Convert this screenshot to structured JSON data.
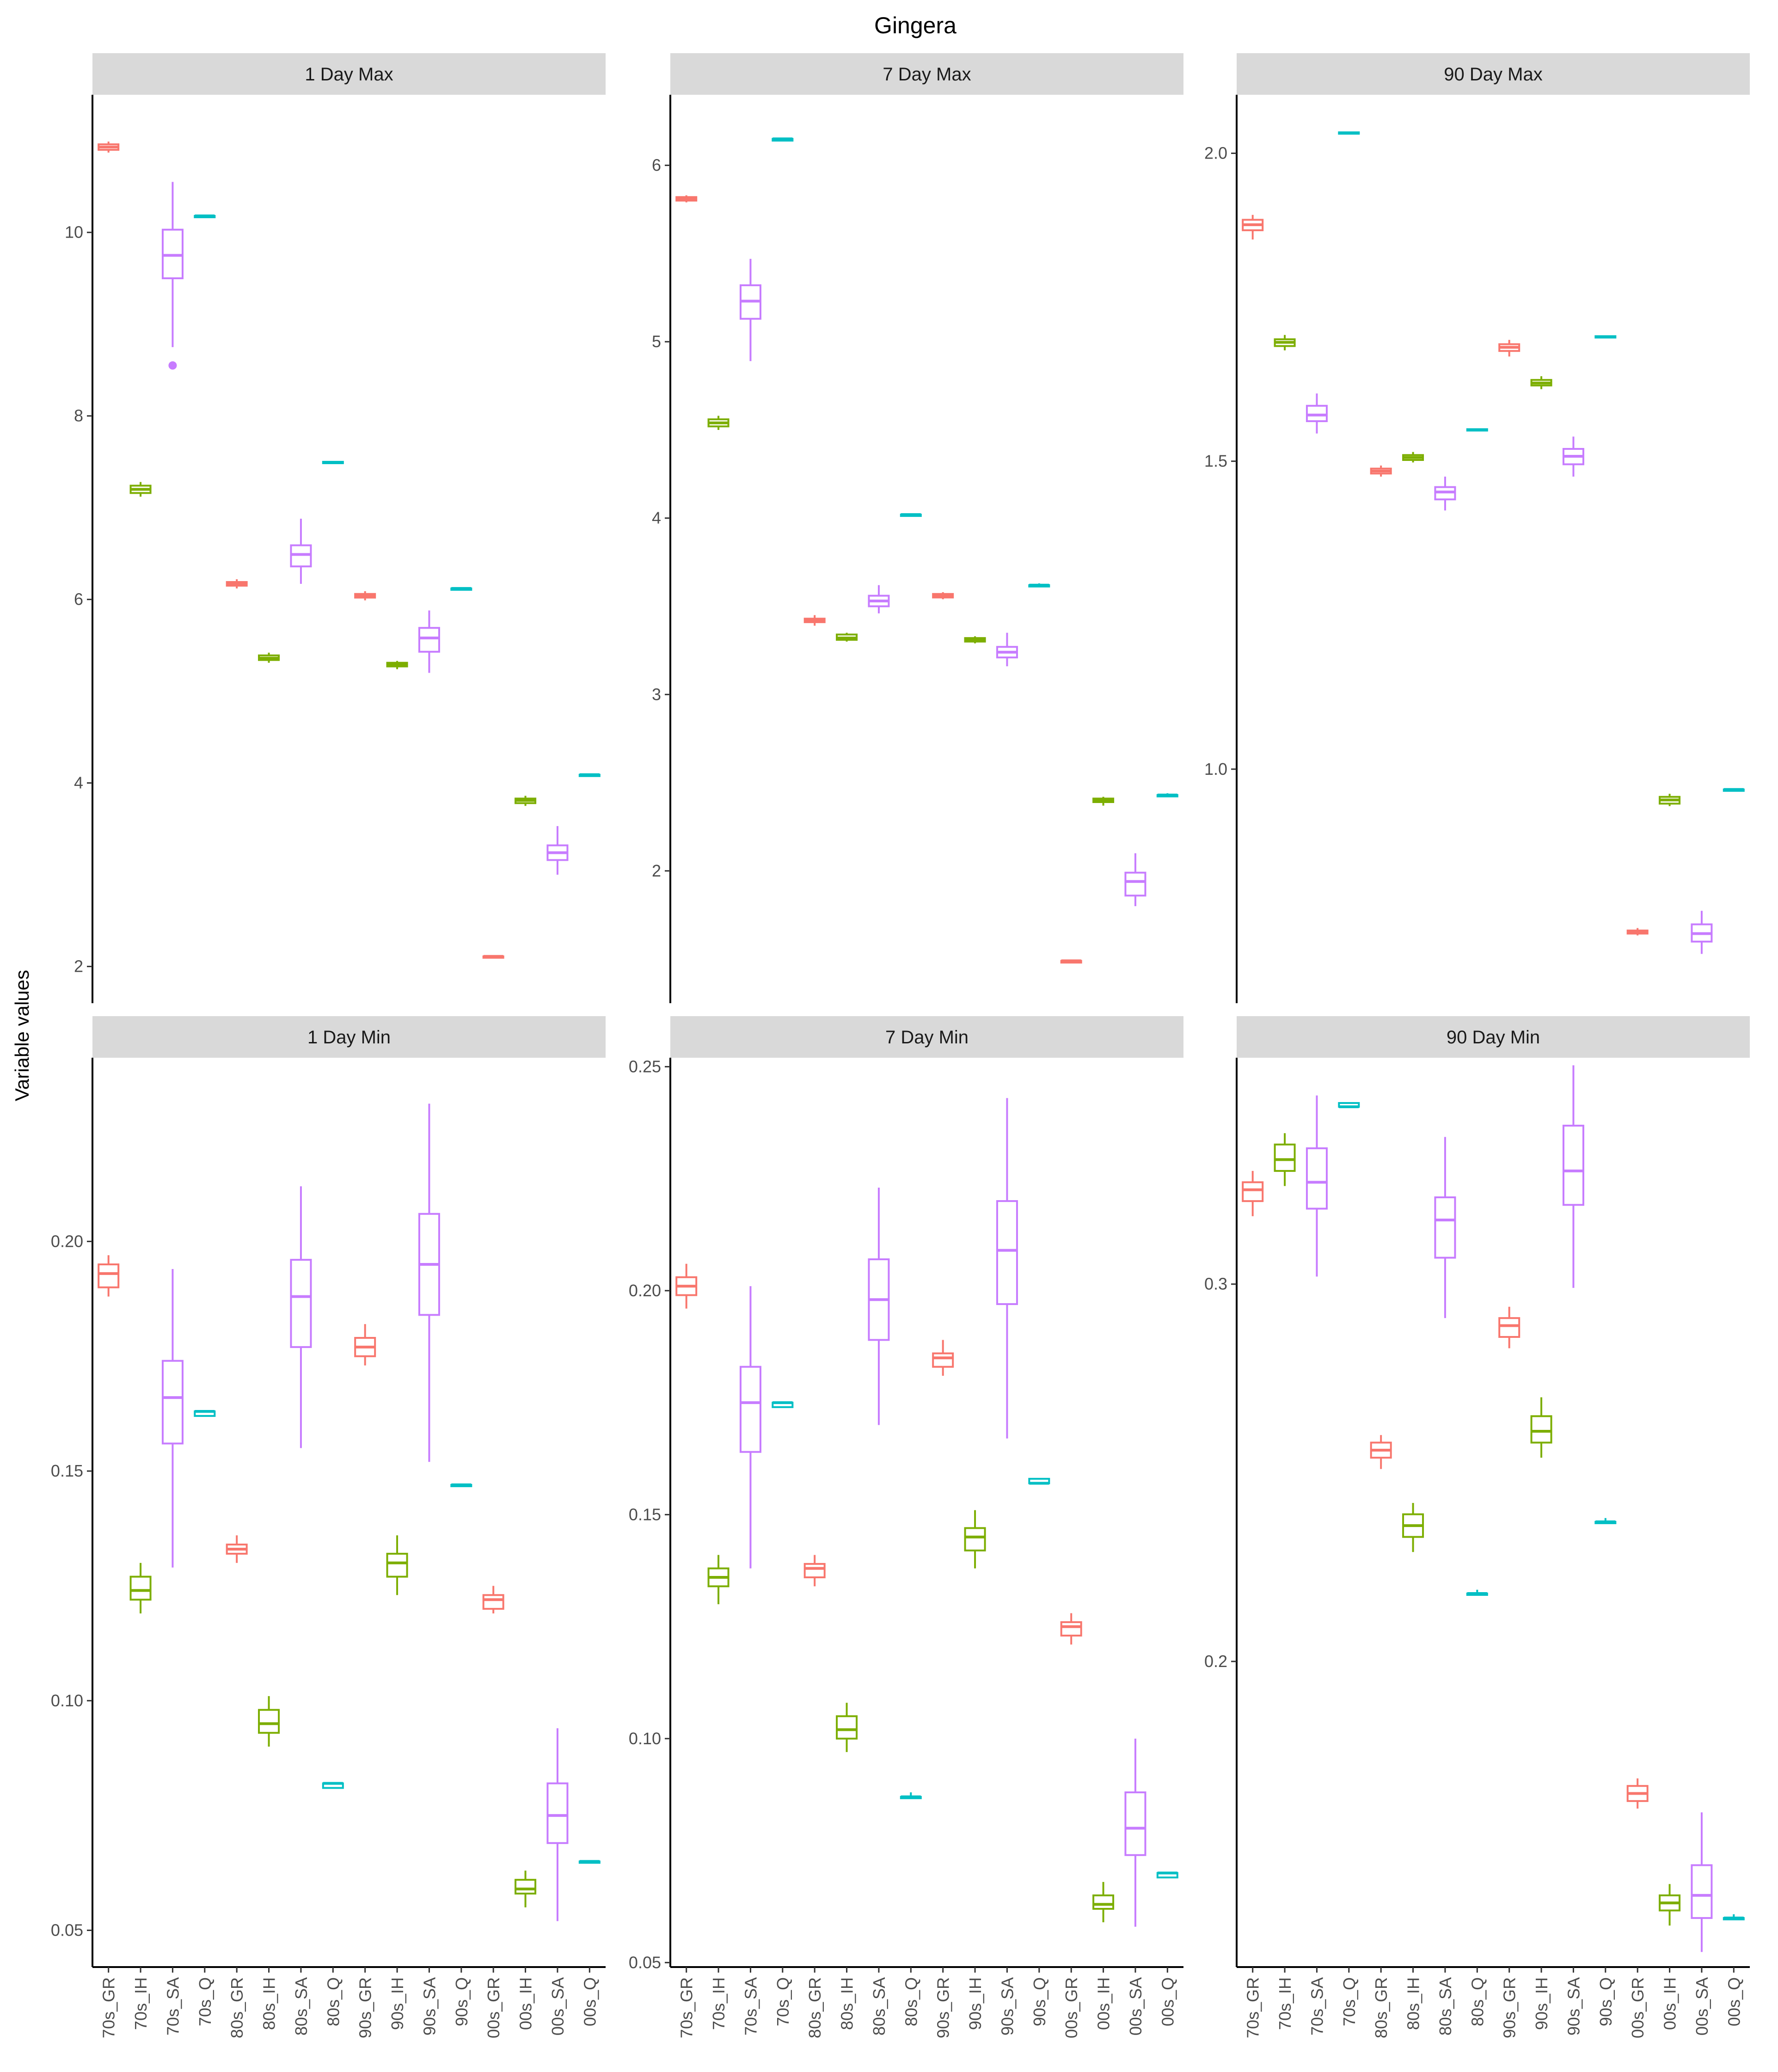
{
  "chart_data": {
    "type": "boxplot",
    "title": "Gingera",
    "ylabel": "Variable values",
    "categories": [
      "70s_GR",
      "70s_IH",
      "70s_SA",
      "70s_Q",
      "80s_GR",
      "80s_IH",
      "80s_SA",
      "80s_Q",
      "90s_GR",
      "90s_IH",
      "90s_SA",
      "90s_Q",
      "00s_GR",
      "00s_IH",
      "00s_SA",
      "00s_Q"
    ],
    "colors": {
      "GR": "#F8766D",
      "IH": "#7CAE00",
      "SA": "#C77CFF",
      "Q": "#00BFC4"
    },
    "panels": [
      {
        "name": "1 Day Max",
        "ylim": [
          1.6,
          11.5
        ],
        "ticks": [
          2,
          4,
          6,
          8,
          10
        ],
        "tick_labels": [
          "2",
          "4",
          "6",
          "8",
          "10"
        ],
        "boxes": [
          {
            "min": 10.87,
            "q1": 10.9,
            "median": 10.93,
            "q3": 10.96,
            "max": 10.99
          },
          {
            "min": 7.12,
            "q1": 7.16,
            "median": 7.2,
            "q3": 7.24,
            "max": 7.28
          },
          {
            "min": 8.75,
            "q1": 9.5,
            "median": 9.75,
            "q3": 10.03,
            "max": 10.55,
            "outliers": [
              8.55
            ]
          },
          {
            "min": 10.17,
            "q1": 10.17,
            "median": 10.18,
            "q3": 10.18,
            "max": 10.19
          },
          {
            "min": 6.12,
            "q1": 6.15,
            "median": 6.17,
            "q3": 6.19,
            "max": 6.22
          },
          {
            "min": 5.31,
            "q1": 5.34,
            "median": 5.36,
            "q3": 5.39,
            "max": 5.42
          },
          {
            "min": 6.17,
            "q1": 6.36,
            "median": 6.49,
            "q3": 6.59,
            "max": 6.88
          },
          {
            "min": 7.48,
            "q1": 7.49,
            "median": 7.49,
            "q3": 7.5,
            "max": 7.5
          },
          {
            "min": 5.99,
            "q1": 6.02,
            "median": 6.04,
            "q3": 6.06,
            "max": 6.09
          },
          {
            "min": 5.24,
            "q1": 5.27,
            "median": 5.29,
            "q3": 5.31,
            "max": 5.33
          },
          {
            "min": 5.2,
            "q1": 5.43,
            "median": 5.58,
            "q3": 5.69,
            "max": 5.88
          },
          {
            "min": 6.11,
            "q1": 6.12,
            "median": 6.12,
            "q3": 6.12,
            "max": 6.13
          },
          {
            "min": 2.1,
            "q1": 2.11,
            "median": 2.11,
            "q3": 2.11,
            "max": 2.12
          },
          {
            "min": 3.75,
            "q1": 3.78,
            "median": 3.81,
            "q3": 3.83,
            "max": 3.86
          },
          {
            "min": 3.0,
            "q1": 3.16,
            "median": 3.24,
            "q3": 3.32,
            "max": 3.53
          },
          {
            "min": 4.08,
            "q1": 4.09,
            "median": 4.09,
            "q3": 4.09,
            "max": 4.1
          }
        ]
      },
      {
        "name": "7 Day Max",
        "ylim": [
          1.25,
          6.4
        ],
        "ticks": [
          2,
          3,
          4,
          5,
          6
        ],
        "tick_labels": [
          "2",
          "3",
          "4",
          "5",
          "6"
        ],
        "boxes": [
          {
            "min": 5.79,
            "q1": 5.8,
            "median": 5.81,
            "q3": 5.82,
            "max": 5.83
          },
          {
            "min": 4.5,
            "q1": 4.52,
            "median": 4.54,
            "q3": 4.56,
            "max": 4.58
          },
          {
            "min": 4.89,
            "q1": 5.13,
            "median": 5.23,
            "q3": 5.32,
            "max": 5.47
          },
          {
            "min": 6.14,
            "q1": 6.14,
            "median": 6.15,
            "q3": 6.15,
            "max": 6.15
          },
          {
            "min": 3.39,
            "q1": 3.41,
            "median": 3.42,
            "q3": 3.43,
            "max": 3.45
          },
          {
            "min": 3.3,
            "q1": 3.31,
            "median": 3.32,
            "q3": 3.34,
            "max": 3.35
          },
          {
            "min": 3.46,
            "q1": 3.5,
            "median": 3.53,
            "q3": 3.56,
            "max": 3.62
          },
          {
            "min": 4.01,
            "q1": 4.02,
            "median": 4.02,
            "q3": 4.02,
            "max": 4.02
          },
          {
            "min": 3.54,
            "q1": 3.55,
            "median": 3.56,
            "q3": 3.57,
            "max": 3.58
          },
          {
            "min": 3.29,
            "q1": 3.3,
            "median": 3.31,
            "q3": 3.32,
            "max": 3.33
          },
          {
            "min": 3.16,
            "q1": 3.21,
            "median": 3.24,
            "q3": 3.27,
            "max": 3.35
          },
          {
            "min": 3.62,
            "q1": 3.62,
            "median": 3.62,
            "q3": 3.62,
            "max": 3.63
          },
          {
            "min": 1.48,
            "q1": 1.48,
            "median": 1.49,
            "q3": 1.49,
            "max": 1.49
          },
          {
            "min": 2.37,
            "q1": 2.39,
            "median": 2.4,
            "q3": 2.41,
            "max": 2.42
          },
          {
            "min": 1.8,
            "q1": 1.86,
            "median": 1.94,
            "q3": 1.99,
            "max": 2.1
          },
          {
            "min": 2.42,
            "q1": 2.43,
            "median": 2.43,
            "q3": 2.43,
            "max": 2.44
          }
        ]
      },
      {
        "name": "90 Day Max",
        "ylim": [
          0.62,
          2.095
        ],
        "ticks": [
          1.0,
          1.5,
          2.0
        ],
        "tick_labels": [
          "1.0",
          "1.5",
          "2.0"
        ],
        "boxes": [
          {
            "min": 1.86,
            "q1": 1.875,
            "median": 1.884,
            "q3": 1.892,
            "max": 1.9
          },
          {
            "min": 1.68,
            "q1": 1.687,
            "median": 1.693,
            "q3": 1.698,
            "max": 1.705
          },
          {
            "min": 1.545,
            "q1": 1.565,
            "median": 1.575,
            "q3": 1.59,
            "max": 1.61
          },
          {
            "min": 2.031,
            "q1": 2.032,
            "median": 2.033,
            "q3": 2.034,
            "max": 2.035
          },
          {
            "min": 1.475,
            "q1": 1.48,
            "median": 1.484,
            "q3": 1.488,
            "max": 1.493
          },
          {
            "min": 1.498,
            "q1": 1.502,
            "median": 1.506,
            "q3": 1.51,
            "max": 1.515
          },
          {
            "min": 1.42,
            "q1": 1.438,
            "median": 1.45,
            "q3": 1.458,
            "max": 1.475
          },
          {
            "min": 1.55,
            "q1": 1.55,
            "median": 1.551,
            "q3": 1.552,
            "max": 1.553
          },
          {
            "min": 1.67,
            "q1": 1.679,
            "median": 1.685,
            "q3": 1.69,
            "max": 1.697
          },
          {
            "min": 1.617,
            "q1": 1.623,
            "median": 1.627,
            "q3": 1.632,
            "max": 1.638
          },
          {
            "min": 1.475,
            "q1": 1.495,
            "median": 1.508,
            "q3": 1.52,
            "max": 1.54
          },
          {
            "min": 1.7,
            "q1": 1.701,
            "median": 1.702,
            "q3": 1.703,
            "max": 1.704
          },
          {
            "min": 0.73,
            "q1": 0.733,
            "median": 0.736,
            "q3": 0.738,
            "max": 0.742
          },
          {
            "min": 0.94,
            "q1": 0.944,
            "median": 0.95,
            "q3": 0.955,
            "max": 0.96
          },
          {
            "min": 0.7,
            "q1": 0.72,
            "median": 0.733,
            "q3": 0.748,
            "max": 0.77
          },
          {
            "min": 0.965,
            "q1": 0.966,
            "median": 0.967,
            "q3": 0.967,
            "max": 0.968
          }
        ]
      },
      {
        "name": "1 Day Min",
        "ylim": [
          0.042,
          0.24
        ],
        "ticks": [
          0.05,
          0.1,
          0.15,
          0.2
        ],
        "tick_labels": [
          "0.05",
          "0.10",
          "0.15",
          "0.20"
        ],
        "boxes": [
          {
            "min": 0.188,
            "q1": 0.19,
            "median": 0.193,
            "q3": 0.195,
            "max": 0.197
          },
          {
            "min": 0.119,
            "q1": 0.122,
            "median": 0.124,
            "q3": 0.127,
            "max": 0.13
          },
          {
            "min": 0.129,
            "q1": 0.156,
            "median": 0.166,
            "q3": 0.174,
            "max": 0.194
          },
          {
            "min": 0.162,
            "q1": 0.162,
            "median": 0.163,
            "q3": 0.163,
            "max": 0.163
          },
          {
            "min": 0.13,
            "q1": 0.132,
            "median": 0.133,
            "q3": 0.134,
            "max": 0.136
          },
          {
            "min": 0.09,
            "q1": 0.093,
            "median": 0.095,
            "q3": 0.098,
            "max": 0.101
          },
          {
            "min": 0.155,
            "q1": 0.177,
            "median": 0.188,
            "q3": 0.196,
            "max": 0.212
          },
          {
            "min": 0.081,
            "q1": 0.081,
            "median": 0.082,
            "q3": 0.082,
            "max": 0.082
          },
          {
            "min": 0.173,
            "q1": 0.175,
            "median": 0.177,
            "q3": 0.179,
            "max": 0.182
          },
          {
            "min": 0.123,
            "q1": 0.127,
            "median": 0.13,
            "q3": 0.132,
            "max": 0.136
          },
          {
            "min": 0.152,
            "q1": 0.184,
            "median": 0.195,
            "q3": 0.206,
            "max": 0.23
          },
          {
            "min": 0.147,
            "q1": 0.147,
            "median": 0.147,
            "q3": 0.147,
            "max": 0.147
          },
          {
            "min": 0.119,
            "q1": 0.12,
            "median": 0.122,
            "q3": 0.123,
            "max": 0.125
          },
          {
            "min": 0.055,
            "q1": 0.058,
            "median": 0.059,
            "q3": 0.061,
            "max": 0.063
          },
          {
            "min": 0.052,
            "q1": 0.069,
            "median": 0.075,
            "q3": 0.082,
            "max": 0.094
          },
          {
            "min": 0.065,
            "q1": 0.065,
            "median": 0.065,
            "q3": 0.065,
            "max": 0.065
          }
        ]
      },
      {
        "name": "7 Day Min",
        "ylim": [
          0.049,
          0.252
        ],
        "ticks": [
          0.05,
          0.1,
          0.15,
          0.2,
          0.25
        ],
        "tick_labels": [
          "0.05",
          "0.10",
          "0.15",
          "0.20",
          "0.25"
        ],
        "boxes": [
          {
            "min": 0.196,
            "q1": 0.199,
            "median": 0.201,
            "q3": 0.203,
            "max": 0.206
          },
          {
            "min": 0.13,
            "q1": 0.134,
            "median": 0.136,
            "q3": 0.138,
            "max": 0.141
          },
          {
            "min": 0.138,
            "q1": 0.164,
            "median": 0.175,
            "q3": 0.183,
            "max": 0.201
          },
          {
            "min": 0.174,
            "q1": 0.174,
            "median": 0.175,
            "q3": 0.175,
            "max": 0.175
          },
          {
            "min": 0.134,
            "q1": 0.136,
            "median": 0.138,
            "q3": 0.139,
            "max": 0.141
          },
          {
            "min": 0.097,
            "q1": 0.1,
            "median": 0.102,
            "q3": 0.105,
            "max": 0.108
          },
          {
            "min": 0.17,
            "q1": 0.189,
            "median": 0.198,
            "q3": 0.207,
            "max": 0.223
          },
          {
            "min": 0.087,
            "q1": 0.087,
            "median": 0.087,
            "q3": 0.087,
            "max": 0.088
          },
          {
            "min": 0.181,
            "q1": 0.183,
            "median": 0.185,
            "q3": 0.186,
            "max": 0.189
          },
          {
            "min": 0.138,
            "q1": 0.142,
            "median": 0.145,
            "q3": 0.147,
            "max": 0.151
          },
          {
            "min": 0.167,
            "q1": 0.197,
            "median": 0.209,
            "q3": 0.22,
            "max": 0.243
          },
          {
            "min": 0.157,
            "q1": 0.157,
            "median": 0.157,
            "q3": 0.158,
            "max": 0.158
          },
          {
            "min": 0.121,
            "q1": 0.123,
            "median": 0.125,
            "q3": 0.126,
            "max": 0.128
          },
          {
            "min": 0.059,
            "q1": 0.062,
            "median": 0.063,
            "q3": 0.065,
            "max": 0.068
          },
          {
            "min": 0.058,
            "q1": 0.074,
            "median": 0.08,
            "q3": 0.088,
            "max": 0.1
          },
          {
            "min": 0.069,
            "q1": 0.069,
            "median": 0.07,
            "q3": 0.07,
            "max": 0.07
          }
        ]
      },
      {
        "name": "90 Day Min",
        "ylim": [
          0.119,
          0.36
        ],
        "ticks": [
          0.2,
          0.3
        ],
        "tick_labels": [
          "0.2",
          "0.3"
        ],
        "boxes": [
          {
            "min": 0.318,
            "q1": 0.322,
            "median": 0.325,
            "q3": 0.327,
            "max": 0.33
          },
          {
            "min": 0.326,
            "q1": 0.33,
            "median": 0.333,
            "q3": 0.337,
            "max": 0.34
          },
          {
            "min": 0.302,
            "q1": 0.32,
            "median": 0.327,
            "q3": 0.336,
            "max": 0.35
          },
          {
            "min": 0.347,
            "q1": 0.347,
            "median": 0.347,
            "q3": 0.348,
            "max": 0.348
          },
          {
            "min": 0.251,
            "q1": 0.254,
            "median": 0.256,
            "q3": 0.258,
            "max": 0.26
          },
          {
            "min": 0.229,
            "q1": 0.233,
            "median": 0.236,
            "q3": 0.239,
            "max": 0.242
          },
          {
            "min": 0.291,
            "q1": 0.307,
            "median": 0.317,
            "q3": 0.323,
            "max": 0.339
          },
          {
            "min": 0.218,
            "q1": 0.218,
            "median": 0.218,
            "q3": 0.218,
            "max": 0.219
          },
          {
            "min": 0.283,
            "q1": 0.286,
            "median": 0.289,
            "q3": 0.291,
            "max": 0.294
          },
          {
            "min": 0.254,
            "q1": 0.258,
            "median": 0.261,
            "q3": 0.265,
            "max": 0.27
          },
          {
            "min": 0.299,
            "q1": 0.321,
            "median": 0.33,
            "q3": 0.342,
            "max": 0.358
          },
          {
            "min": 0.237,
            "q1": 0.237,
            "median": 0.237,
            "q3": 0.237,
            "max": 0.238
          },
          {
            "min": 0.161,
            "q1": 0.163,
            "median": 0.165,
            "q3": 0.167,
            "max": 0.169
          },
          {
            "min": 0.13,
            "q1": 0.134,
            "median": 0.136,
            "q3": 0.138,
            "max": 0.141
          },
          {
            "min": 0.123,
            "q1": 0.132,
            "median": 0.138,
            "q3": 0.146,
            "max": 0.16
          },
          {
            "min": 0.132,
            "q1": 0.132,
            "median": 0.132,
            "q3": 0.132,
            "max": 0.133
          }
        ]
      }
    ]
  }
}
